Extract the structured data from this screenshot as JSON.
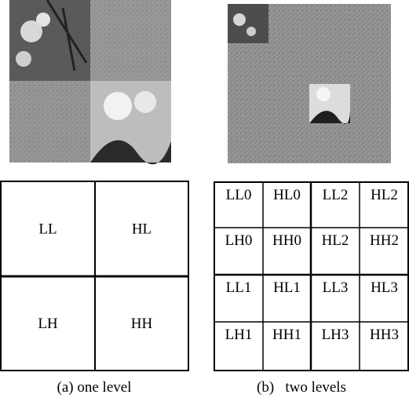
{
  "panels": [
    {
      "cells": [
        "LL",
        "HL",
        "LH",
        "HH"
      ],
      "caption": "(a) one level"
    },
    {
      "cells": [
        "LL0",
        "HL0",
        "LL2",
        "HL2",
        "LH0",
        "HH0",
        "HL2",
        "HH2",
        "LL1",
        "HL1",
        "LL3",
        "HL3",
        "LH1",
        "HH1",
        "LH3",
        "HH3"
      ],
      "caption": "(b)   two levels"
    }
  ]
}
